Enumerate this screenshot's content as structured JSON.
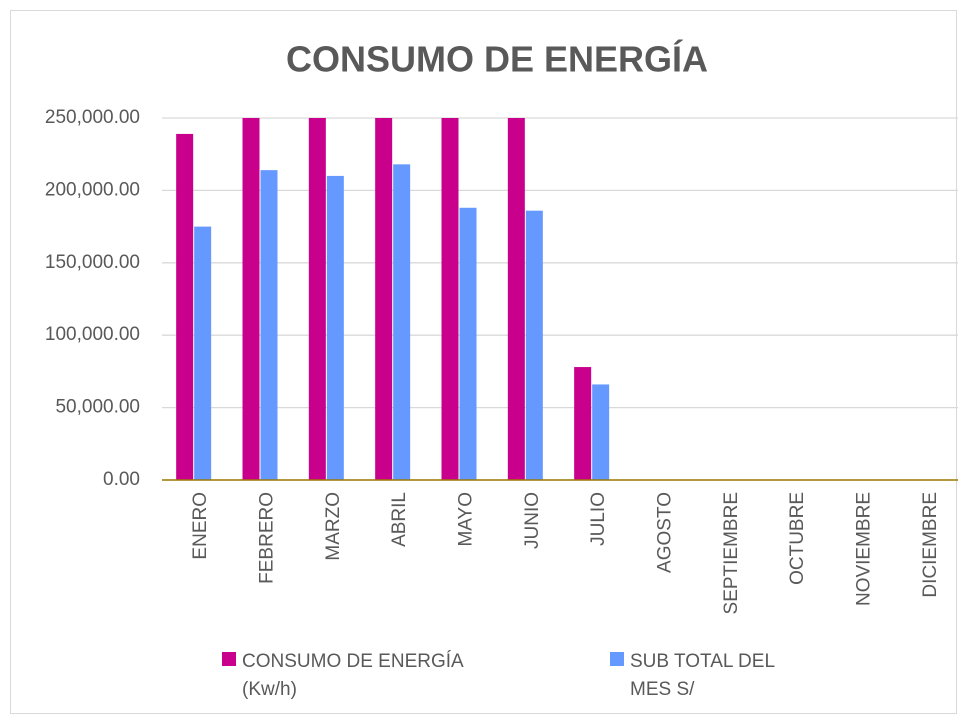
{
  "chart_data": {
    "type": "bar",
    "title": "CONSUMO DE ENERGÍA",
    "categories": [
      "ENERO",
      "FEBRERO",
      "MARZO",
      "ABRIL",
      "MAYO",
      "JUNIO",
      "JULIO",
      "AGOSTO",
      "SEPTIEMBRE",
      "OCTUBRE",
      "NOVIEMBRE",
      "DICIEMBRE"
    ],
    "series": [
      {
        "name": "CONSUMO DE ENERGÍA (Kw/h)",
        "color": "#c8008c",
        "values": [
          239000,
          250000,
          250000,
          250000,
          250000,
          250000,
          78000,
          null,
          null,
          null,
          null,
          null
        ]
      },
      {
        "name": "SUB TOTAL DEL MES S/",
        "color": "#6699ff",
        "values": [
          175000,
          214000,
          210000,
          218000,
          188000,
          186000,
          66000,
          null,
          null,
          null,
          null,
          null
        ]
      }
    ],
    "ylim": [
      0,
      250000
    ],
    "yticks": [
      {
        "value": 0,
        "label": "0.00"
      },
      {
        "value": 50000,
        "label": "50,000.00"
      },
      {
        "value": 100000,
        "label": "100,000.00"
      },
      {
        "value": 150000,
        "label": "150,000.00"
      },
      {
        "value": 200000,
        "label": "200,000.00"
      },
      {
        "value": 250000,
        "label": "250,000.00"
      }
    ],
    "grid": true,
    "legend": "bottom"
  }
}
